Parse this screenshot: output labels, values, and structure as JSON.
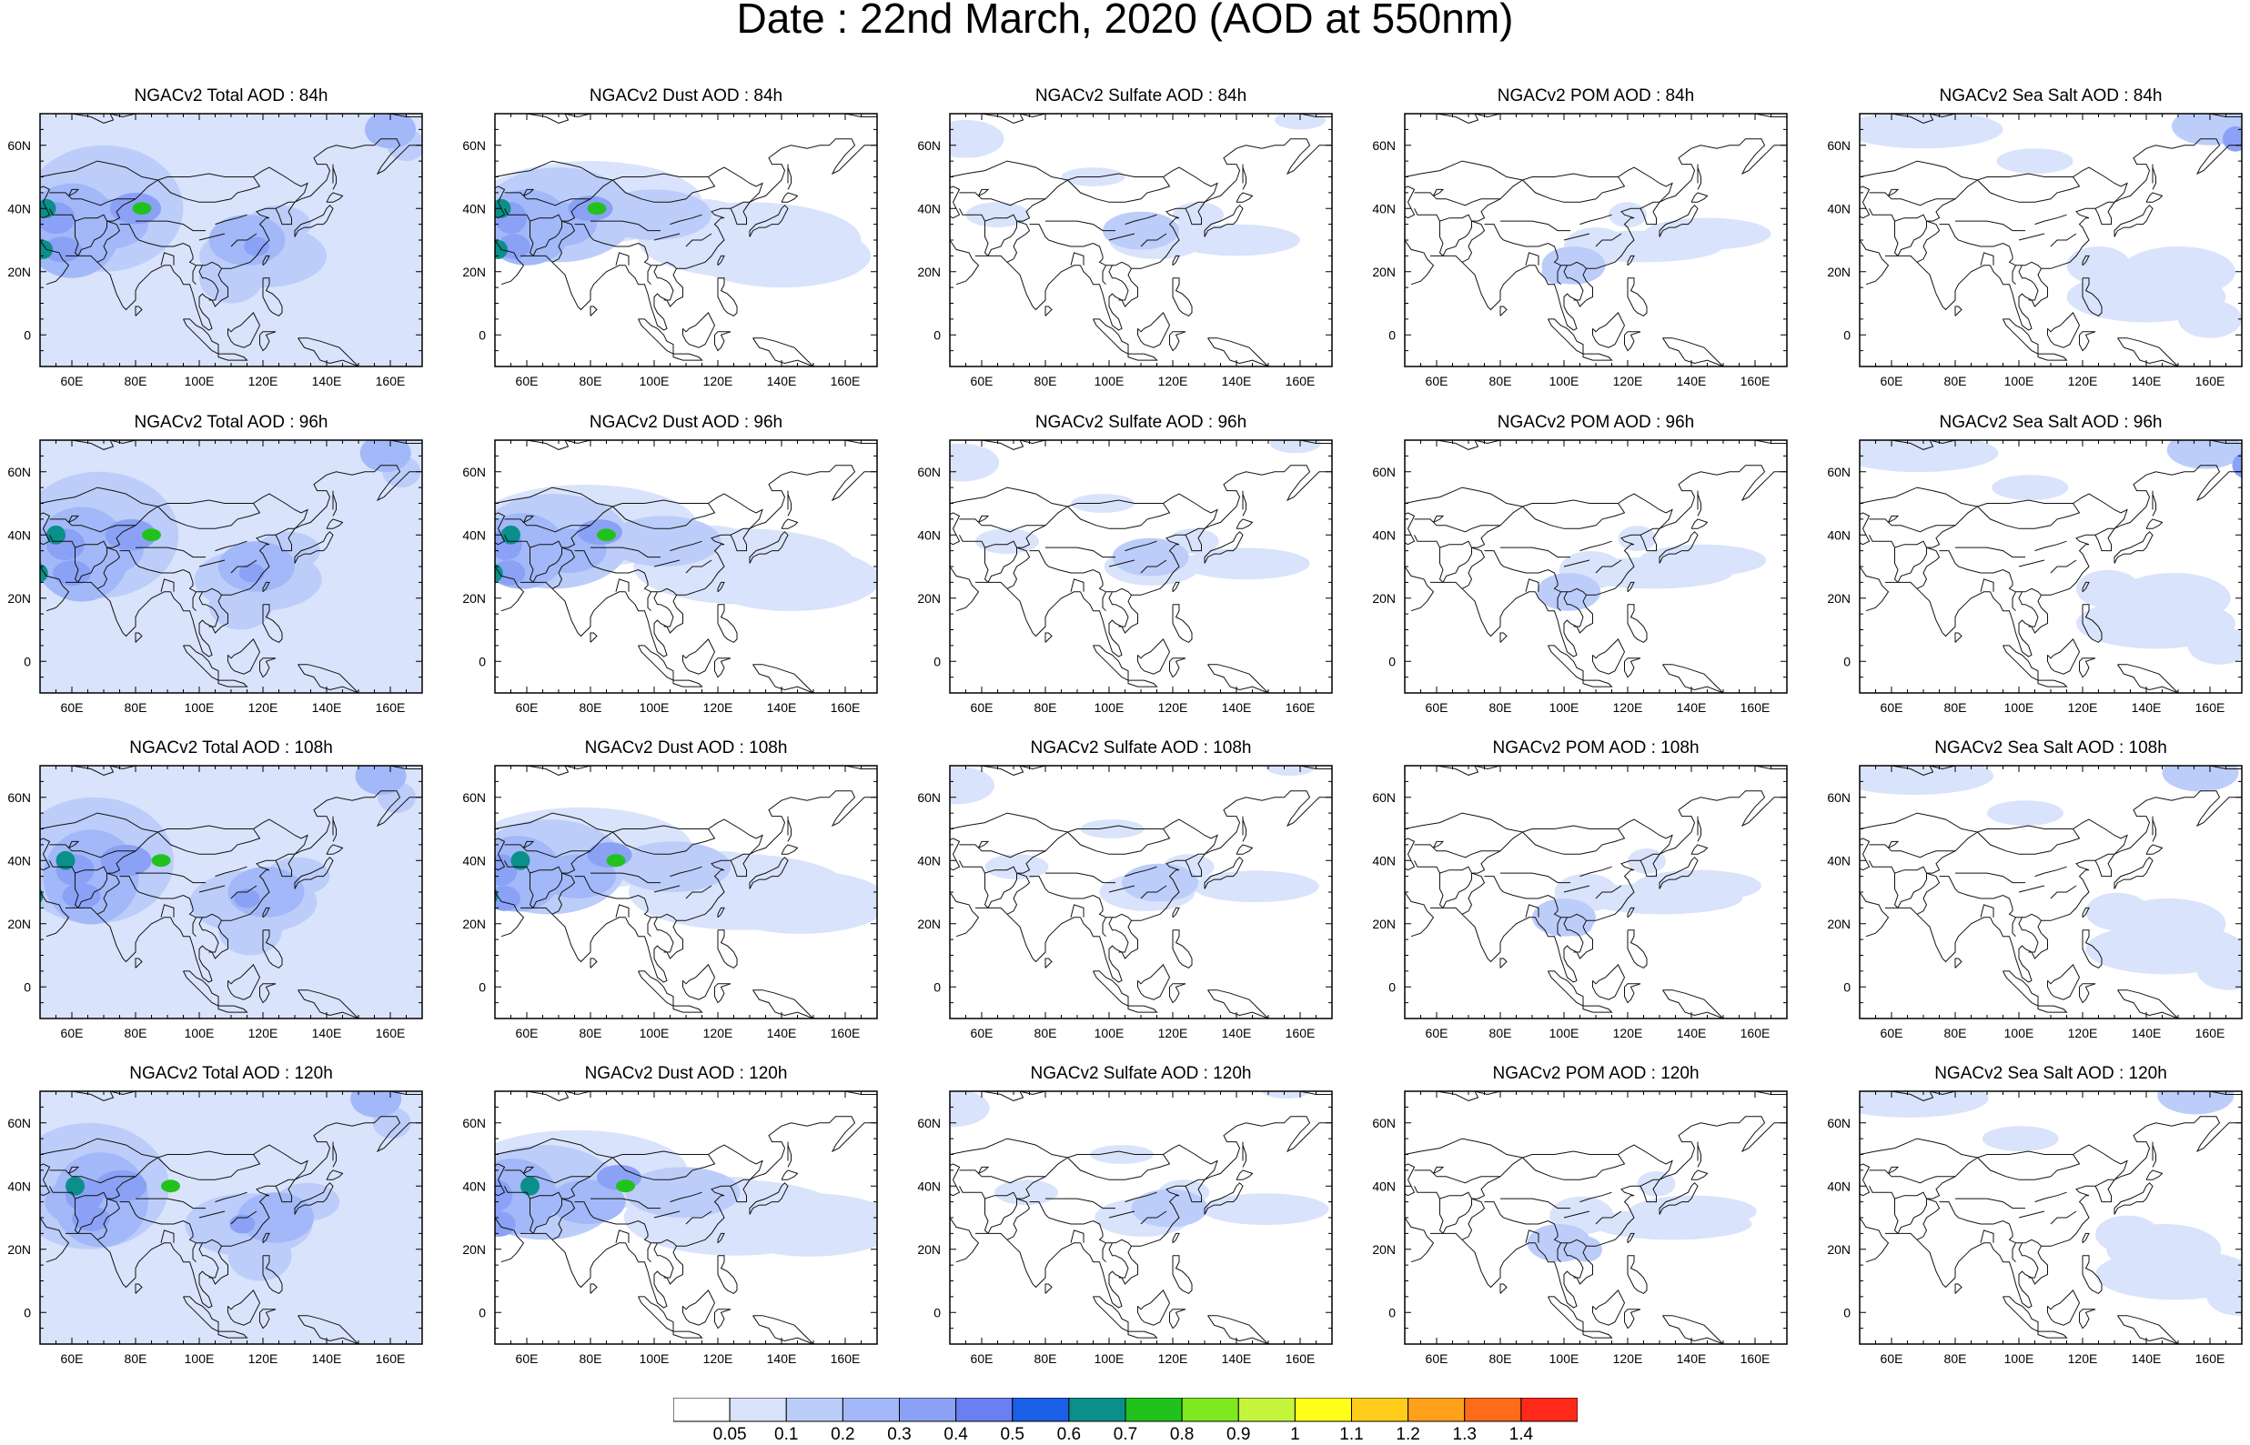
{
  "figure": {
    "title": "Date : 22nd March, 2020 (AOD at 550nm)"
  },
  "rows": [
    {
      "hour": "84h",
      "titles": [
        "NGACv2 Total AOD : 84h",
        "NGACv2 Dust AOD : 84h",
        "NGACv2 Sulfate AOD : 84h",
        "NGACv2 POM AOD : 84h",
        "NGACv2 Sea Salt AOD : 84h"
      ]
    },
    {
      "hour": "96h",
      "titles": [
        "NGACv2 Total AOD : 96h",
        "NGACv2 Dust AOD : 96h",
        "NGACv2 Sulfate AOD : 96h",
        "NGACv2 POM AOD : 96h",
        "NGACv2 Sea Salt AOD : 96h"
      ]
    },
    {
      "hour": "108h",
      "titles": [
        "NGACv2 Total AOD : 108h",
        "NGACv2 Dust AOD : 108h",
        "NGACv2 Sulfate AOD : 108h",
        "NGACv2 POM AOD : 108h",
        "NGACv2 Sea Salt AOD : 108h"
      ]
    },
    {
      "hour": "120h",
      "titles": [
        "NGACv2 Total AOD : 120h",
        "NGACv2 Dust AOD : 120h",
        "NGACv2 Sulfate AOD : 120h",
        "NGACv2 POM AOD : 120h",
        "NGACv2 Sea Salt  AOD : 120h"
      ]
    }
  ],
  "map": {
    "lon_range": [
      50,
      170
    ],
    "lat_range": [
      -10,
      70
    ],
    "lon_ticks": [
      {
        "v": 60,
        "t": "60E"
      },
      {
        "v": 80,
        "t": "80E"
      },
      {
        "v": 100,
        "t": "100E"
      },
      {
        "v": 120,
        "t": "120E"
      },
      {
        "v": 140,
        "t": "140E"
      },
      {
        "v": 160,
        "t": "160E"
      }
    ],
    "lat_ticks": [
      {
        "v": 0,
        "t": "0"
      },
      {
        "v": 20,
        "t": "20N"
      },
      {
        "v": 40,
        "t": "40N"
      },
      {
        "v": 60,
        "t": "60N"
      }
    ]
  },
  "colorbar": {
    "levels": [
      "0.05",
      "0.1",
      "0.2",
      "0.3",
      "0.4",
      "0.5",
      "0.6",
      "0.7",
      "0.8",
      "0.9",
      "1",
      "1.1",
      "1.2",
      "1.3",
      "1.4"
    ],
    "colors": [
      "#ffffff",
      "#d9e3fb",
      "#bccdfa",
      "#a2b8f8",
      "#8aa1f6",
      "#6b7ff2",
      "#1a5fe6",
      "#0b8f8a",
      "#22c21d",
      "#7fe81f",
      "#c5f53b",
      "#ffff1a",
      "#ffcc1a",
      "#ffa01a",
      "#ff6b1a",
      "#ff2a1a"
    ]
  }
}
